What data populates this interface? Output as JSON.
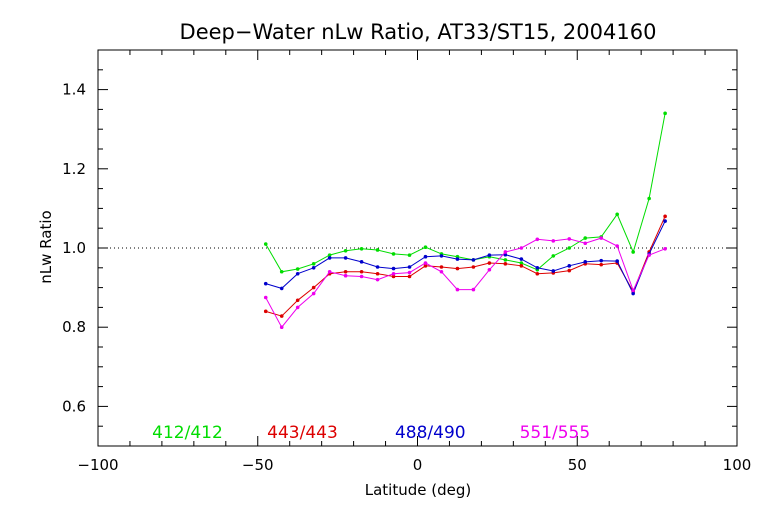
{
  "chart_data": {
    "type": "line",
    "title": "Deep−Water nLw Ratio, AT33/ST15, 2004160",
    "xlabel": "Latitude (deg)",
    "ylabel": "nLw Ratio",
    "xlim": [
      -100,
      100
    ],
    "ylim": [
      0.5,
      1.5
    ],
    "x_ticks": [
      -100,
      -50,
      0,
      50,
      100
    ],
    "x_tick_labels": [
      "−100",
      "−50",
      "0",
      "50",
      "100"
    ],
    "y_ticks": [
      0.6,
      0.8,
      1.0,
      1.2,
      1.4
    ],
    "y_tick_labels": [
      "0.6",
      "0.8",
      "1.0",
      "1.2",
      "1.4"
    ],
    "reference_line": 1.0,
    "grid": false,
    "legend_position": "bottom",
    "series": [
      {
        "name": "412/412",
        "color": "#00dd00",
        "x": [
          -47.5,
          -42.5,
          -37.5,
          -32.5,
          -27.5,
          -22.5,
          -17.5,
          -12.5,
          -7.5,
          -2.5,
          2.5,
          7.5,
          12.5,
          17.5,
          22.5,
          27.5,
          32.5,
          37.5,
          42.5,
          47.5,
          52.5,
          57.5,
          62.5,
          67.5,
          72.5,
          77.5
        ],
        "values": [
          1.01,
          0.94,
          0.947,
          0.96,
          0.982,
          0.993,
          0.998,
          0.995,
          0.985,
          0.982,
          1.002,
          0.985,
          0.978,
          0.97,
          0.978,
          0.97,
          0.962,
          0.945,
          0.98,
          1.0,
          1.025,
          1.028,
          1.085,
          0.99,
          1.125,
          1.34
        ]
      },
      {
        "name": "443/443",
        "color": "#dd0000",
        "x": [
          -47.5,
          -42.5,
          -37.5,
          -32.5,
          -27.5,
          -22.5,
          -17.5,
          -12.5,
          -7.5,
          -2.5,
          2.5,
          7.5,
          12.5,
          17.5,
          22.5,
          27.5,
          32.5,
          37.5,
          42.5,
          47.5,
          52.5,
          57.5,
          62.5,
          67.5,
          72.5,
          77.5
        ],
        "values": [
          0.84,
          0.828,
          0.868,
          0.9,
          0.935,
          0.94,
          0.94,
          0.935,
          0.928,
          0.928,
          0.955,
          0.952,
          0.948,
          0.952,
          0.962,
          0.96,
          0.955,
          0.935,
          0.937,
          0.943,
          0.96,
          0.958,
          0.962,
          0.89,
          0.99,
          1.08
        ]
      },
      {
        "name": "488/490",
        "color": "#0000cc",
        "x": [
          -47.5,
          -42.5,
          -37.5,
          -32.5,
          -27.5,
          -22.5,
          -17.5,
          -12.5,
          -7.5,
          -2.5,
          2.5,
          7.5,
          12.5,
          17.5,
          22.5,
          27.5,
          32.5,
          37.5,
          42.5,
          47.5,
          52.5,
          57.5,
          62.5,
          67.5,
          72.5,
          77.5
        ],
        "values": [
          0.91,
          0.898,
          0.935,
          0.95,
          0.975,
          0.975,
          0.965,
          0.952,
          0.948,
          0.952,
          0.978,
          0.98,
          0.972,
          0.97,
          0.982,
          0.983,
          0.972,
          0.95,
          0.942,
          0.955,
          0.965,
          0.968,
          0.967,
          0.885,
          0.985,
          1.068
        ]
      },
      {
        "name": "551/555",
        "color": "#ee00ee",
        "x": [
          -47.5,
          -42.5,
          -37.5,
          -32.5,
          -27.5,
          -22.5,
          -17.5,
          -12.5,
          -7.5,
          -2.5,
          2.5,
          7.5,
          12.5,
          17.5,
          22.5,
          27.5,
          32.5,
          37.5,
          42.5,
          47.5,
          52.5,
          57.5,
          62.5,
          67.5,
          72.5,
          77.5
        ],
        "values": [
          0.875,
          0.8,
          0.85,
          0.885,
          0.94,
          0.93,
          0.928,
          0.92,
          0.935,
          0.938,
          0.962,
          0.94,
          0.895,
          0.895,
          0.945,
          0.99,
          1.0,
          1.022,
          1.018,
          1.023,
          1.012,
          1.025,
          1.005,
          0.893,
          0.982,
          0.998
        ]
      }
    ]
  }
}
